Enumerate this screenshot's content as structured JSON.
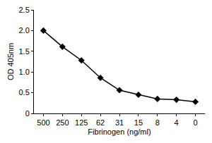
{
  "chart_data": {
    "type": "line",
    "x_label": "Fibrinogen (ng/ml)",
    "y_label": "OD 405nm",
    "categories": [
      "500",
      "250",
      "125",
      "62",
      "31",
      "15",
      "8",
      "4",
      "0"
    ],
    "values": [
      2.0,
      1.61,
      1.28,
      0.86,
      0.56,
      0.45,
      0.35,
      0.33,
      0.28
    ],
    "color": "#000000",
    "marker": "diamond",
    "ylim": [
      0,
      2.5
    ],
    "yticks": [
      0,
      0.5,
      {
        "value": 1,
        "label": "1.0"
      },
      1.5,
      {
        "value": 2,
        "label": "2.0"
      },
      2.5
    ],
    "grid": false
  }
}
